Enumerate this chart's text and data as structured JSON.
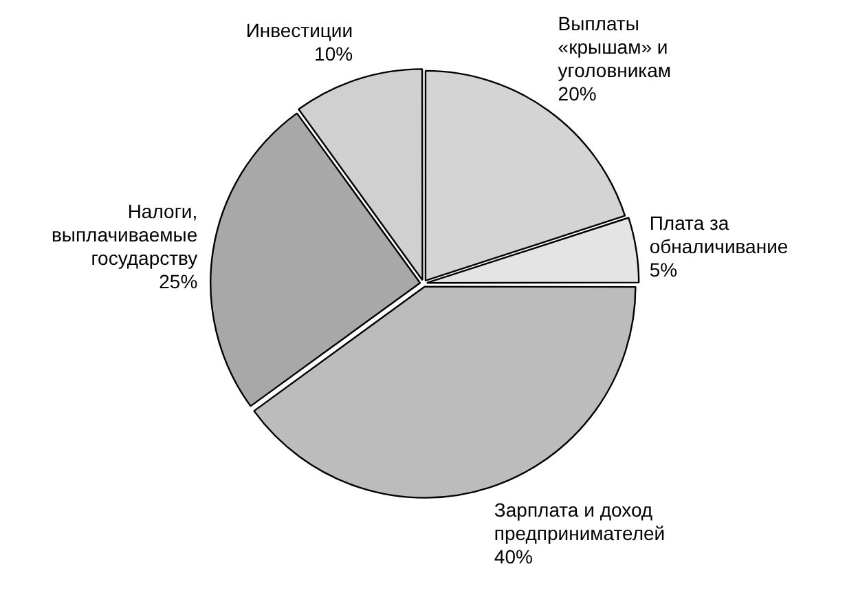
{
  "chart_data": {
    "type": "pie",
    "categories": [
      "Выплаты «крышам» и уголовникам",
      "Плата за обналичивание",
      "Зарплата и доход предпринимателей",
      "Налоги, выплачиваемые государству",
      "Инвестиции"
    ],
    "values": [
      20,
      5,
      40,
      25,
      10
    ],
    "value_labels": [
      "20%",
      "5%",
      "40%",
      "25%",
      "10%"
    ],
    "colors": [
      "#d4d4d4",
      "#e4e4e4",
      "#bcbcbc",
      "#a8a8a8",
      "#d0d0d0"
    ],
    "legend": false
  }
}
